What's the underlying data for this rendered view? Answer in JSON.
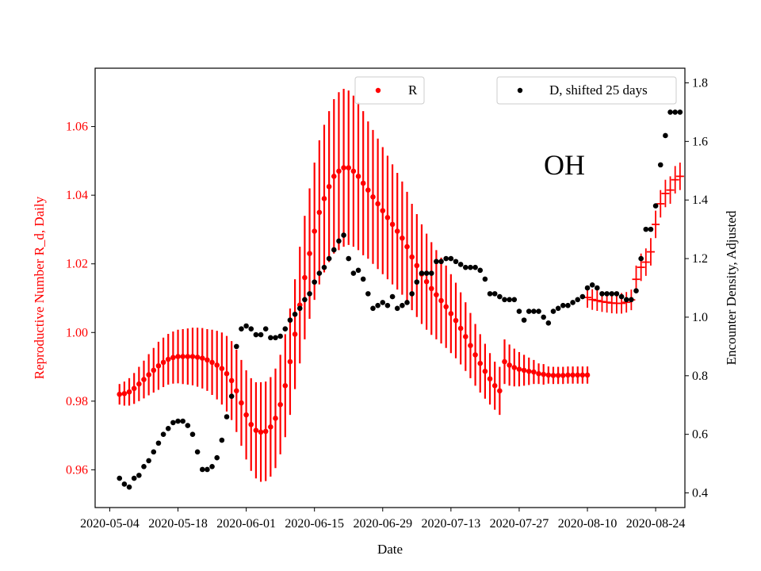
{
  "chart_data": {
    "type": "scatter",
    "state_label": "OH",
    "xlabel": "Date",
    "ylabel_left": "Reproductive Number R_d, Daily",
    "ylabel_right": "Encounter Density, Adjusted",
    "xlim": [
      "2020-05-01",
      "2020-08-30"
    ],
    "ylim_left": [
      0.949,
      1.077
    ],
    "ylim_right": [
      0.35,
      1.85
    ],
    "x_ticks": [
      "2020-05-04",
      "2020-05-18",
      "2020-06-01",
      "2020-06-15",
      "2020-06-29",
      "2020-07-13",
      "2020-07-27",
      "2020-08-10",
      "2020-08-24"
    ],
    "y_ticks_left": [
      "0.96",
      "0.98",
      "1.00",
      "1.02",
      "1.04",
      "1.06"
    ],
    "y_ticks_right": [
      "0.4",
      "0.6",
      "0.8",
      "1.0",
      "1.2",
      "1.4",
      "1.6",
      "1.8"
    ],
    "colors": {
      "R": "#ff0000",
      "D": "#000000",
      "left_axis": "#ff0000"
    },
    "legend_left": {
      "label": "R",
      "placement": "top-center"
    },
    "legend_right": {
      "label": "D, shifted 25 days",
      "placement": "top-right"
    },
    "series_R": {
      "name": "R",
      "x": [
        "2020-05-06",
        "2020-05-07",
        "2020-05-08",
        "2020-05-09",
        "2020-05-10",
        "2020-05-11",
        "2020-05-12",
        "2020-05-13",
        "2020-05-14",
        "2020-05-15",
        "2020-05-16",
        "2020-05-17",
        "2020-05-18",
        "2020-05-19",
        "2020-05-20",
        "2020-05-21",
        "2020-05-22",
        "2020-05-23",
        "2020-05-24",
        "2020-05-25",
        "2020-05-26",
        "2020-05-27",
        "2020-05-28",
        "2020-05-29",
        "2020-05-30",
        "2020-05-31",
        "2020-06-01",
        "2020-06-02",
        "2020-06-03",
        "2020-06-04",
        "2020-06-05",
        "2020-06-06",
        "2020-06-07",
        "2020-06-08",
        "2020-06-09",
        "2020-06-10",
        "2020-06-11",
        "2020-06-12",
        "2020-06-13",
        "2020-06-14",
        "2020-06-15",
        "2020-06-16",
        "2020-06-17",
        "2020-06-18",
        "2020-06-19",
        "2020-06-20",
        "2020-06-21",
        "2020-06-22",
        "2020-06-23",
        "2020-06-24",
        "2020-06-25",
        "2020-06-26",
        "2020-06-27",
        "2020-06-28",
        "2020-06-29",
        "2020-06-30",
        "2020-07-01",
        "2020-07-02",
        "2020-07-03",
        "2020-07-04",
        "2020-07-05",
        "2020-07-06",
        "2020-07-07",
        "2020-07-08",
        "2020-07-09",
        "2020-07-10",
        "2020-07-11",
        "2020-07-12",
        "2020-07-13",
        "2020-07-14",
        "2020-07-15",
        "2020-07-16",
        "2020-07-17",
        "2020-07-18",
        "2020-07-19",
        "2020-07-20",
        "2020-07-21",
        "2020-07-22",
        "2020-07-23",
        "2020-07-24",
        "2020-07-25",
        "2020-07-26",
        "2020-07-27",
        "2020-07-28",
        "2020-07-29",
        "2020-07-30",
        "2020-07-31",
        "2020-08-01",
        "2020-08-02",
        "2020-08-03",
        "2020-08-04",
        "2020-08-05",
        "2020-08-06",
        "2020-08-07",
        "2020-08-08",
        "2020-08-09",
        "2020-08-10"
      ],
      "y": [
        0.982,
        0.9822,
        0.9827,
        0.9837,
        0.985,
        0.9863,
        0.9877,
        0.989,
        0.9903,
        0.9913,
        0.9922,
        0.9927,
        0.993,
        0.993,
        0.993,
        0.993,
        0.9928,
        0.9925,
        0.992,
        0.9913,
        0.9905,
        0.9895,
        0.988,
        0.986,
        0.983,
        0.9795,
        0.976,
        0.9732,
        0.9715,
        0.971,
        0.9712,
        0.9725,
        0.975,
        0.979,
        0.9845,
        0.9915,
        0.9995,
        1.008,
        1.016,
        1.023,
        1.0295,
        1.035,
        1.039,
        1.0425,
        1.0455,
        1.047,
        1.048,
        1.048,
        1.047,
        1.0455,
        1.0435,
        1.0415,
        1.0395,
        1.0375,
        1.0355,
        1.0335,
        1.0315,
        1.0295,
        1.0275,
        1.025,
        1.022,
        1.0195,
        1.017,
        1.0148,
        1.0128,
        1.011,
        1.0093,
        1.0075,
        1.0055,
        1.0035,
        1.0012,
        0.9988,
        0.9962,
        0.9935,
        0.991,
        0.9887,
        0.9865,
        0.9845,
        0.983,
        0.9915,
        0.9905,
        0.9898,
        0.9893,
        0.989,
        0.9887,
        0.9885,
        0.988,
        0.9878,
        0.9876,
        0.9875,
        0.9875,
        0.9875,
        0.9876,
        0.9876,
        0.9876,
        0.9876,
        0.9876
      ],
      "err": [
        0.003,
        0.0035,
        0.004,
        0.0045,
        0.005,
        0.0055,
        0.006,
        0.0065,
        0.007,
        0.0072,
        0.0074,
        0.0076,
        0.0078,
        0.008,
        0.0082,
        0.0084,
        0.0086,
        0.0088,
        0.009,
        0.0095,
        0.01,
        0.0105,
        0.011,
        0.0115,
        0.012,
        0.0125,
        0.013,
        0.0135,
        0.014,
        0.0145,
        0.0145,
        0.0145,
        0.0145,
        0.0145,
        0.015,
        0.0155,
        0.016,
        0.017,
        0.018,
        0.019,
        0.02,
        0.021,
        0.0215,
        0.022,
        0.0225,
        0.023,
        0.023,
        0.0225,
        0.022,
        0.0215,
        0.021,
        0.02,
        0.0195,
        0.019,
        0.0185,
        0.018,
        0.0175,
        0.017,
        0.0165,
        0.016,
        0.0155,
        0.015,
        0.0145,
        0.014,
        0.0135,
        0.013,
        0.0125,
        0.012,
        0.0115,
        0.011,
        0.0105,
        0.01,
        0.0095,
        0.009,
        0.0085,
        0.008,
        0.0075,
        0.007,
        0.007,
        0.0065,
        0.006,
        0.0055,
        0.005,
        0.0045,
        0.004,
        0.0035,
        0.003,
        0.003,
        0.0025,
        0.0025,
        0.0025,
        0.0025,
        0.0025,
        0.0025,
        0.0025,
        0.0025,
        0.0025
      ]
    },
    "series_R_cross": {
      "name": "R",
      "x": [
        "2020-08-10",
        "2020-08-11",
        "2020-08-12",
        "2020-08-13",
        "2020-08-14",
        "2020-08-15",
        "2020-08-16",
        "2020-08-17",
        "2020-08-18",
        "2020-08-19",
        "2020-08-20",
        "2020-08-21",
        "2020-08-22",
        "2020-08-23",
        "2020-08-24",
        "2020-08-25",
        "2020-08-26",
        "2020-08-27",
        "2020-08-28",
        "2020-08-29"
      ],
      "y": [
        1.0102,
        1.0096,
        1.0093,
        1.009,
        1.0088,
        1.0086,
        1.0085,
        1.0085,
        1.0088,
        1.0095,
        1.0155,
        1.019,
        1.0205,
        1.0235,
        1.0315,
        1.0375,
        1.0405,
        1.0415,
        1.0445,
        1.0455
      ],
      "err": [
        0.003,
        0.003,
        0.003,
        0.003,
        0.003,
        0.003,
        0.003,
        0.003,
        0.003,
        0.003,
        0.004,
        0.004,
        0.004,
        0.004,
        0.004,
        0.004,
        0.004,
        0.004,
        0.004,
        0.004
      ]
    },
    "series_D": {
      "name": "D, shifted 25 days",
      "x": [
        "2020-05-06",
        "2020-05-07",
        "2020-05-08",
        "2020-05-09",
        "2020-05-10",
        "2020-05-11",
        "2020-05-12",
        "2020-05-13",
        "2020-05-14",
        "2020-05-15",
        "2020-05-16",
        "2020-05-17",
        "2020-05-18",
        "2020-05-19",
        "2020-05-20",
        "2020-05-21",
        "2020-05-22",
        "2020-05-23",
        "2020-05-24",
        "2020-05-25",
        "2020-05-26",
        "2020-05-27",
        "2020-05-28",
        "2020-05-29",
        "2020-05-30",
        "2020-05-31",
        "2020-06-01",
        "2020-06-02",
        "2020-06-03",
        "2020-06-04",
        "2020-06-05",
        "2020-06-06",
        "2020-06-07",
        "2020-06-08",
        "2020-06-09",
        "2020-06-10",
        "2020-06-11",
        "2020-06-12",
        "2020-06-13",
        "2020-06-14",
        "2020-06-15",
        "2020-06-16",
        "2020-06-17",
        "2020-06-18",
        "2020-06-19",
        "2020-06-20",
        "2020-06-21",
        "2020-06-22",
        "2020-06-23",
        "2020-06-24",
        "2020-06-25",
        "2020-06-26",
        "2020-06-27",
        "2020-06-28",
        "2020-06-29",
        "2020-06-30",
        "2020-07-01",
        "2020-07-02",
        "2020-07-03",
        "2020-07-04",
        "2020-07-05",
        "2020-07-06",
        "2020-07-07",
        "2020-07-08",
        "2020-07-09",
        "2020-07-10",
        "2020-07-11",
        "2020-07-12",
        "2020-07-13",
        "2020-07-14",
        "2020-07-15",
        "2020-07-16",
        "2020-07-17",
        "2020-07-18",
        "2020-07-19",
        "2020-07-20",
        "2020-07-21",
        "2020-07-22",
        "2020-07-23",
        "2020-07-24",
        "2020-07-25",
        "2020-07-26",
        "2020-07-27",
        "2020-07-28",
        "2020-07-29",
        "2020-07-30",
        "2020-07-31",
        "2020-08-01",
        "2020-08-02",
        "2020-08-03",
        "2020-08-04",
        "2020-08-05",
        "2020-08-06",
        "2020-08-07",
        "2020-08-08",
        "2020-08-09",
        "2020-08-10",
        "2020-08-11",
        "2020-08-12",
        "2020-08-13",
        "2020-08-14",
        "2020-08-15",
        "2020-08-16",
        "2020-08-17",
        "2020-08-18",
        "2020-08-19",
        "2020-08-20",
        "2020-08-21",
        "2020-08-22",
        "2020-08-23",
        "2020-08-24",
        "2020-08-25",
        "2020-08-26",
        "2020-08-27",
        "2020-08-28",
        "2020-08-29"
      ],
      "y": [
        0.45,
        0.43,
        0.42,
        0.45,
        0.46,
        0.49,
        0.51,
        0.54,
        0.57,
        0.6,
        0.62,
        0.64,
        0.645,
        0.645,
        0.63,
        0.6,
        0.54,
        0.48,
        0.48,
        0.49,
        0.52,
        0.58,
        0.66,
        0.73,
        0.9,
        0.96,
        0.97,
        0.96,
        0.94,
        0.94,
        0.96,
        0.93,
        0.93,
        0.935,
        0.96,
        0.99,
        1.01,
        1.03,
        1.06,
        1.08,
        1.12,
        1.15,
        1.17,
        1.2,
        1.23,
        1.26,
        1.28,
        1.2,
        1.15,
        1.16,
        1.13,
        1.08,
        1.03,
        1.04,
        1.05,
        1.04,
        1.07,
        1.03,
        1.04,
        1.05,
        1.08,
        1.12,
        1.15,
        1.15,
        1.15,
        1.19,
        1.19,
        1.2,
        1.2,
        1.19,
        1.18,
        1.17,
        1.17,
        1.17,
        1.16,
        1.13,
        1.08,
        1.08,
        1.07,
        1.06,
        1.06,
        1.06,
        1.02,
        0.99,
        1.02,
        1.02,
        1.02,
        1.0,
        0.98,
        1.02,
        1.03,
        1.04,
        1.04,
        1.05,
        1.06,
        1.07,
        1.1,
        1.11,
        1.1,
        1.08,
        1.08,
        1.08,
        1.08,
        1.07,
        1.06,
        1.06,
        1.09,
        1.2,
        1.3,
        1.3,
        1.38,
        1.52,
        1.62,
        1.7,
        1.7,
        1.7
      ]
    }
  }
}
